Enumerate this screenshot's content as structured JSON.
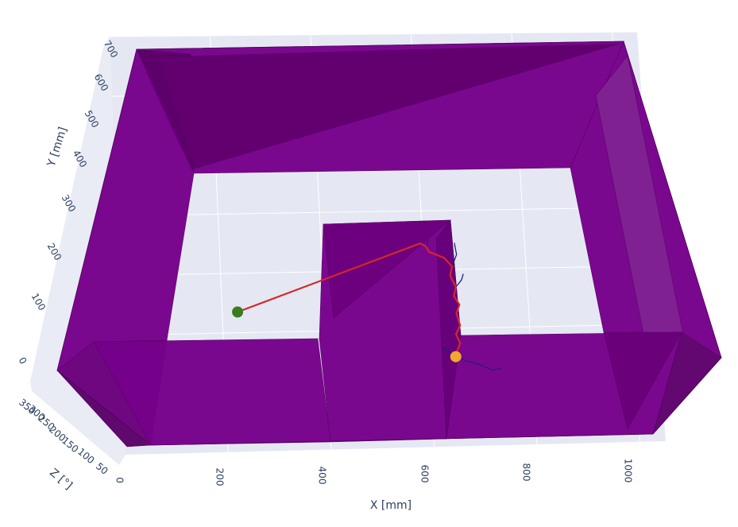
{
  "chart_data": {
    "type": "3d-path-planning",
    "axes": {
      "x": {
        "label": "X [mm]",
        "ticks": [
          "200",
          "400",
          "600",
          "800",
          "1000"
        ],
        "range": [
          0,
          1050
        ]
      },
      "y": {
        "label": "Y [mm]",
        "ticks": [
          "0",
          "100",
          "200",
          "300",
          "400",
          "500",
          "600",
          "700"
        ],
        "range": [
          0,
          700
        ]
      },
      "z": {
        "label": "Z [°]",
        "ticks": [
          "0",
          "50",
          "100",
          "150",
          "200",
          "250",
          "300",
          "350"
        ],
        "range": [
          0,
          360
        ]
      }
    },
    "obstacle_color": "#6a0080",
    "planned_path": {
      "color": "#d62728",
      "points": [
        [
          230,
          235
        ],
        [
          595,
          345
        ],
        [
          605,
          340
        ],
        [
          612,
          330
        ],
        [
          640,
          320
        ],
        [
          655,
          305
        ],
        [
          650,
          290
        ],
        [
          660,
          270
        ],
        [
          655,
          255
        ],
        [
          665,
          240
        ],
        [
          658,
          225
        ],
        [
          664,
          205
        ],
        [
          655,
          190
        ],
        [
          662,
          175
        ],
        [
          652,
          155
        ]
      ]
    },
    "tree_branches": {
      "color": "#1f1f7a",
      "branches": [
        [
          [
            608,
            340
          ],
          [
            610,
            350
          ]
        ],
        [
          [
            655,
            305
          ],
          [
            665,
            325
          ],
          [
            662,
            345
          ]
        ],
        [
          [
            660,
            270
          ],
          [
            672,
            282
          ],
          [
            676,
            292
          ]
        ],
        [
          [
            652,
            155
          ],
          [
            670,
            145
          ],
          [
            690,
            140
          ],
          [
            705,
            135
          ],
          [
            720,
            128
          ],
          [
            740,
            130
          ]
        ],
        [
          [
            652,
            155
          ],
          [
            640,
            160
          ],
          [
            625,
            168
          ]
        ]
      ]
    },
    "start_point": {
      "x": 230,
      "y": 235,
      "color": "#3a7d1e"
    },
    "goal_point": {
      "x": 652,
      "y": 152,
      "color": "#f0a830"
    }
  }
}
